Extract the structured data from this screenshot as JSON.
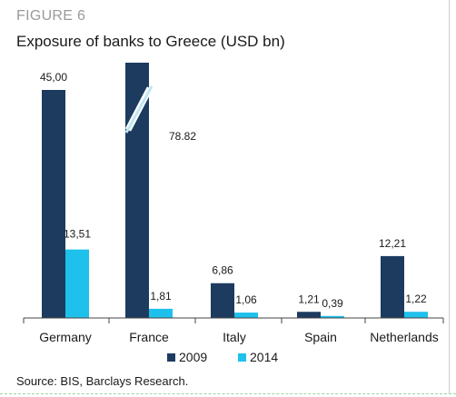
{
  "figure_label": "FIGURE 6",
  "source": "Source: BIS, Barclays Research.",
  "colors": {
    "s2009": "#1c3b5f",
    "s2014": "#1ec0ec",
    "axis": "#444444",
    "text": "#1a1a1a"
  },
  "chart_data": {
    "type": "bar",
    "title": "Exposure of banks to Greece (USD bn)",
    "categories": [
      "Germany",
      "France",
      "Italy",
      "Spain",
      "Netherlands"
    ],
    "series": [
      {
        "name": "2009",
        "values": [
          45.0,
          78.82,
          6.86,
          1.21,
          12.21
        ],
        "labels": [
          "45,00",
          "78.82",
          "6,86",
          "1,21",
          "12,21"
        ]
      },
      {
        "name": "2014",
        "values": [
          13.51,
          1.81,
          1.06,
          0.39,
          1.22
        ],
        "labels": [
          "13,51",
          "1,81",
          "1,06",
          "0,39",
          "1,22"
        ]
      }
    ],
    "axis_break": {
      "category": "France",
      "series": "2009",
      "label_value": 78.82
    },
    "legend_position": "bottom",
    "grid": false
  }
}
